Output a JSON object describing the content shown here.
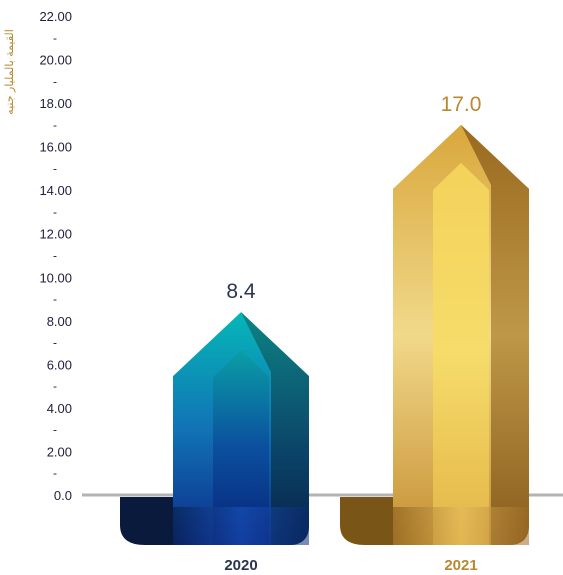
{
  "chart_data": {
    "type": "bar",
    "title": "",
    "ylabel": "القيمة بالمليار جنيه",
    "xlabel": "",
    "categories": [
      "2020",
      "2021"
    ],
    "values": [
      8.4,
      17.0
    ],
    "value_labels": [
      "8.4",
      "17.0"
    ],
    "ylim": [
      0,
      22
    ],
    "yticks": [
      "0.0",
      "2.00",
      "4.00",
      "6.00",
      "8.00",
      "10.00",
      "12.00",
      "14.00",
      "16.00",
      "18.00",
      "20.00",
      "22.00"
    ],
    "grid": false,
    "legend": "none",
    "colors": {
      "bar_2020": "#0a8fa8",
      "bar_2020_label": "#2b3550",
      "bar_2021": "#d4a43a",
      "bar_2021_label": "#b8892f",
      "axis": "#b3b3b3"
    }
  }
}
